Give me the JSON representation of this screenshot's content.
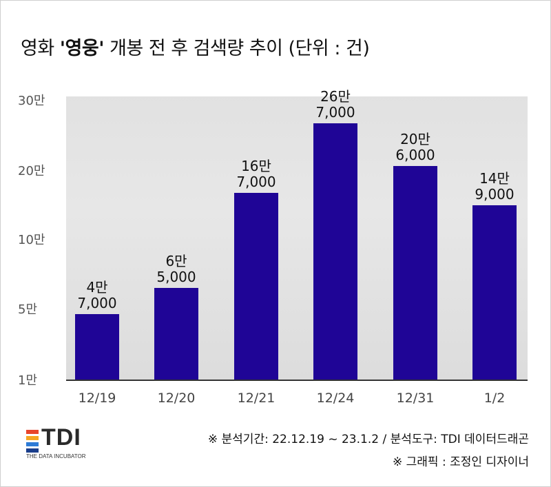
{
  "title": {
    "prefix": "영화 ",
    "highlight": "'영웅'",
    "suffix": " 개봉 전 후 검색량 추이 (단위 : 건)"
  },
  "chart_data": {
    "type": "bar",
    "title": "영화 '영웅' 개봉 전 후 검색량 추이 (단위 : 건)",
    "categories": [
      "12/19",
      "12/20",
      "12/21",
      "12/24",
      "12/31",
      "1/2"
    ],
    "values": [
      47000,
      65000,
      167000,
      267000,
      206000,
      149000
    ],
    "value_labels": [
      [
        "4만",
        "7,000"
      ],
      [
        "6만",
        "5,000"
      ],
      [
        "16만",
        "7,000"
      ],
      [
        "26만",
        "7,000"
      ],
      [
        "20만",
        "6,000"
      ],
      [
        "14만",
        "9,000"
      ]
    ],
    "y_ticks": [
      "1만",
      "5만",
      "10만",
      "20만",
      "30만"
    ],
    "ylim": [
      10000,
      300000
    ],
    "bar_color": "#1f0596",
    "grid": false
  },
  "logo": {
    "text": "TDI",
    "subtitle": "THE DATA INCUBATOR",
    "colors": [
      "#e8452c",
      "#f5a623",
      "#2e7bd6",
      "#1a3e8c"
    ]
  },
  "footer": {
    "source": "※ 분석기간: 22.12.19 ~ 23.1.2 / 분석도구: TDI 데이터드래곤",
    "graphic": "※ 그래픽 : 조정인 디자이너"
  }
}
